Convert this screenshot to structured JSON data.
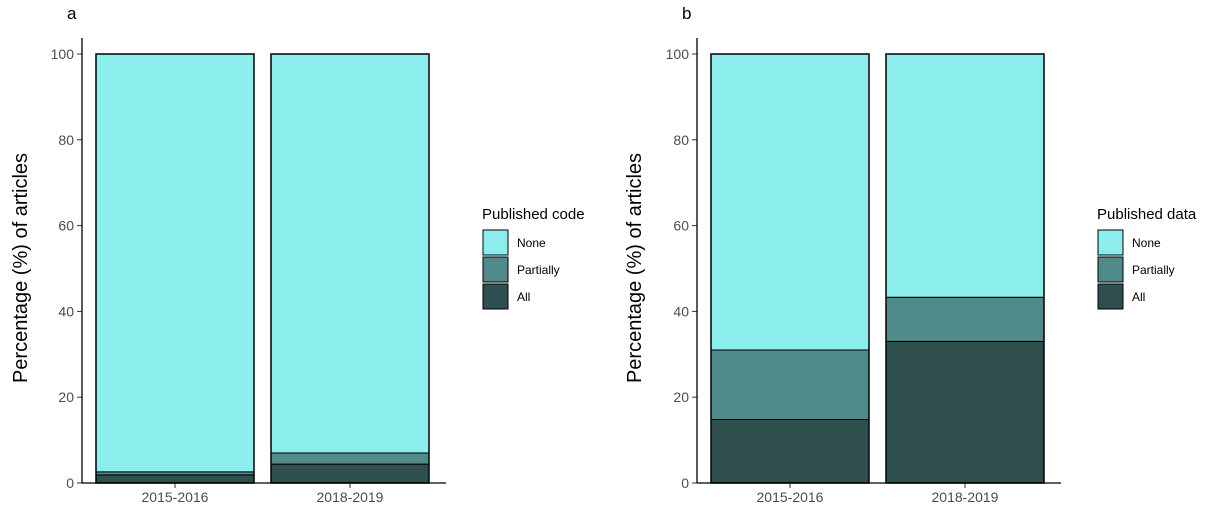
{
  "chart_data": [
    {
      "type": "bar",
      "stacked": true,
      "panel": "a",
      "categories": [
        "2015-2016",
        "2018-2019"
      ],
      "series": [
        {
          "name": "None",
          "values": [
            97.4,
            93.0
          ]
        },
        {
          "name": "Partially",
          "values": [
            0.7,
            2.6
          ]
        },
        {
          "name": "All",
          "values": [
            1.9,
            4.4
          ]
        }
      ],
      "title": "",
      "xlabel": "",
      "ylabel": "Percentage (%) of articles",
      "ylim": [
        0,
        100
      ],
      "yticks": [
        "0",
        "20",
        "40",
        "60",
        "80",
        "100"
      ],
      "legend_title": "Published code",
      "legend_position": "right",
      "grid": false
    },
    {
      "type": "bar",
      "stacked": true,
      "panel": "b",
      "categories": [
        "2015-2016",
        "2018-2019"
      ],
      "series": [
        {
          "name": "None",
          "values": [
            69.0,
            56.7
          ]
        },
        {
          "name": "Partially",
          "values": [
            16.2,
            10.3
          ]
        },
        {
          "name": "All",
          "values": [
            14.8,
            33.0
          ]
        }
      ],
      "title": "",
      "xlabel": "",
      "ylabel": "Percentage (%) of articles",
      "ylim": [
        0,
        100
      ],
      "yticks": [
        "0",
        "20",
        "40",
        "60",
        "80",
        "100"
      ],
      "legend_title": "Published data",
      "legend_position": "right",
      "grid": false
    }
  ],
  "colors": {
    "None": "#8ceded",
    "Partially": "#518a8a",
    "All": "#2f4f4f"
  }
}
